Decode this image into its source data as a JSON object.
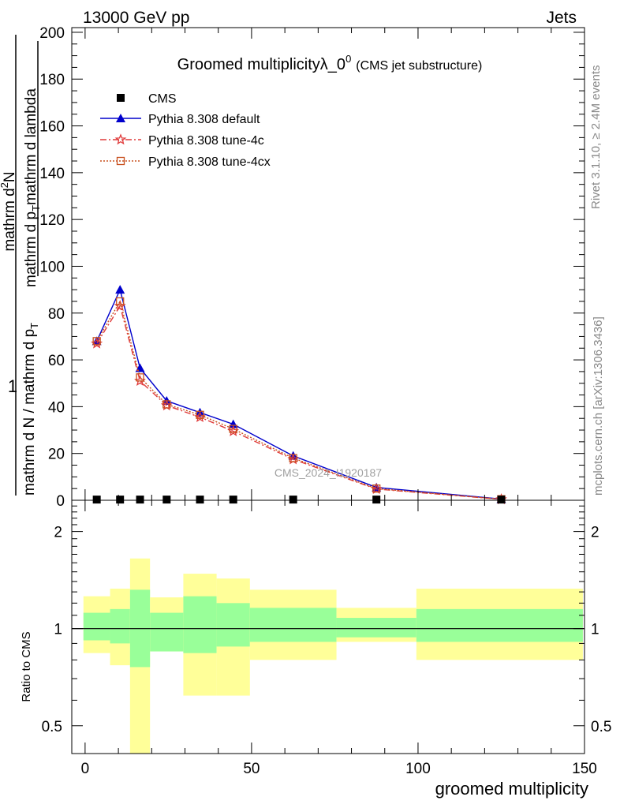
{
  "header": {
    "left": "13000 GeV pp",
    "right": "Jets"
  },
  "side_labels": {
    "rivet": "Rivet 3.1.10, ≥ 2.4M events",
    "mcplots": "mcplots.cern.ch [arXiv:1306.3436]"
  },
  "watermark": "CMS_2024_I1920187",
  "colors": {
    "default": "#0000cc",
    "tune4c": "#e03a3a",
    "tune4cx": "#c8501e",
    "band_inner": "#99ff99",
    "band_outer": "#ffff99"
  },
  "chart_data": [
    {
      "type": "line",
      "title": "Groomed multiplicityλ_0",
      "title_superscript": "0",
      "title_suffix": "(CMS jet substructure)",
      "ylabel_numerator": "mathrm d²N",
      "ylabel_numerator_parts": [
        "mathrm d",
        "2",
        "N"
      ],
      "ylabel_denominator": "mathrm d p_T mathrm d lambda",
      "ylabel_denominator_parts": [
        "mathrm d p",
        "T",
        "mathrm d lambda"
      ],
      "ylabel_prefix_numerator": "1",
      "ylabel_prefix_denominator": "mathrm d N / mathrm d p_T",
      "ylabel_prefix_denominator_parts": [
        "mathrm d N / mathrm d p",
        "T"
      ],
      "ylim": [
        0,
        202
      ],
      "yticks": [
        0,
        20,
        40,
        60,
        80,
        100,
        120,
        140,
        160,
        180,
        200
      ],
      "xlim": [
        -4,
        150
      ],
      "legend": [
        "CMS",
        "Pythia 8.308 default",
        "Pythia 8.308 tune-4c",
        "Pythia 8.308 tune-4cx"
      ],
      "legend_placement": "top-left",
      "series": [
        {
          "name": "CMS",
          "x": [
            3.5,
            10.5,
            16.5,
            24.5,
            34.5,
            44.5,
            62.5,
            87.5,
            125
          ],
          "values": [
            0.3,
            0.3,
            0.3,
            0.3,
            0.3,
            0.3,
            0.3,
            0.3,
            0.3
          ]
        },
        {
          "name": "Pythia 8.308 default",
          "x": [
            3.5,
            10.5,
            16.5,
            24.5,
            34.5,
            44.5,
            62.5,
            87.5,
            125
          ],
          "values": [
            68,
            90,
            56.5,
            42.5,
            37.5,
            32.5,
            19,
            5.5,
            0.5
          ]
        },
        {
          "name": "Pythia 8.308 tune-4c",
          "x": [
            3.5,
            10.5,
            16.5,
            24.5,
            34.5,
            44.5,
            62.5,
            87.5,
            125
          ],
          "values": [
            67,
            83,
            51,
            40.5,
            35.5,
            29.5,
            17.5,
            4.8,
            0.4
          ]
        },
        {
          "name": "Pythia 8.308 tune-4cx",
          "x": [
            3.5,
            10.5,
            16.5,
            24.5,
            34.5,
            44.5,
            62.5,
            87.5,
            125
          ],
          "values": [
            68,
            85,
            52.5,
            41,
            36.5,
            30.5,
            18,
            5,
            0.45
          ]
        }
      ]
    },
    {
      "type": "area",
      "xlabel": "groomed multiplicity",
      "ylabel": "Ratio to CMS",
      "log_y": true,
      "ylim": [
        0.41,
        2.5
      ],
      "yticks": [
        0.5,
        1,
        2
      ],
      "xlim": [
        -4,
        150
      ],
      "xticks": [
        0,
        50,
        100,
        150
      ],
      "bins": [
        {
          "lo": -0.5,
          "hi": 7.5,
          "inner": [
            0.92,
            1.12
          ],
          "outer": [
            0.84,
            1.26
          ]
        },
        {
          "lo": 7.5,
          "hi": 13.5,
          "inner": [
            0.9,
            1.15
          ],
          "outer": [
            0.77,
            1.33
          ]
        },
        {
          "lo": 13.5,
          "hi": 19.5,
          "inner": [
            0.76,
            1.32
          ],
          "outer": [
            0.35,
            1.65
          ]
        },
        {
          "lo": 19.5,
          "hi": 29.5,
          "inner": [
            0.85,
            1.12
          ],
          "outer": [
            0.85,
            1.25
          ]
        },
        {
          "lo": 29.5,
          "hi": 39.5,
          "inner": [
            0.84,
            1.26
          ],
          "outer": [
            0.62,
            1.48
          ]
        },
        {
          "lo": 39.5,
          "hi": 49.5,
          "inner": [
            0.88,
            1.2
          ],
          "outer": [
            0.62,
            1.43
          ]
        },
        {
          "lo": 49.5,
          "hi": 75.5,
          "inner": [
            0.91,
            1.16
          ],
          "outer": [
            0.8,
            1.32
          ]
        },
        {
          "lo": 75.5,
          "hi": 99.5,
          "inner": [
            0.94,
            1.08
          ],
          "outer": [
            0.91,
            1.16
          ]
        },
        {
          "lo": 99.5,
          "hi": 149.5,
          "inner": [
            0.91,
            1.15
          ],
          "outer": [
            0.8,
            1.33
          ]
        }
      ]
    }
  ]
}
